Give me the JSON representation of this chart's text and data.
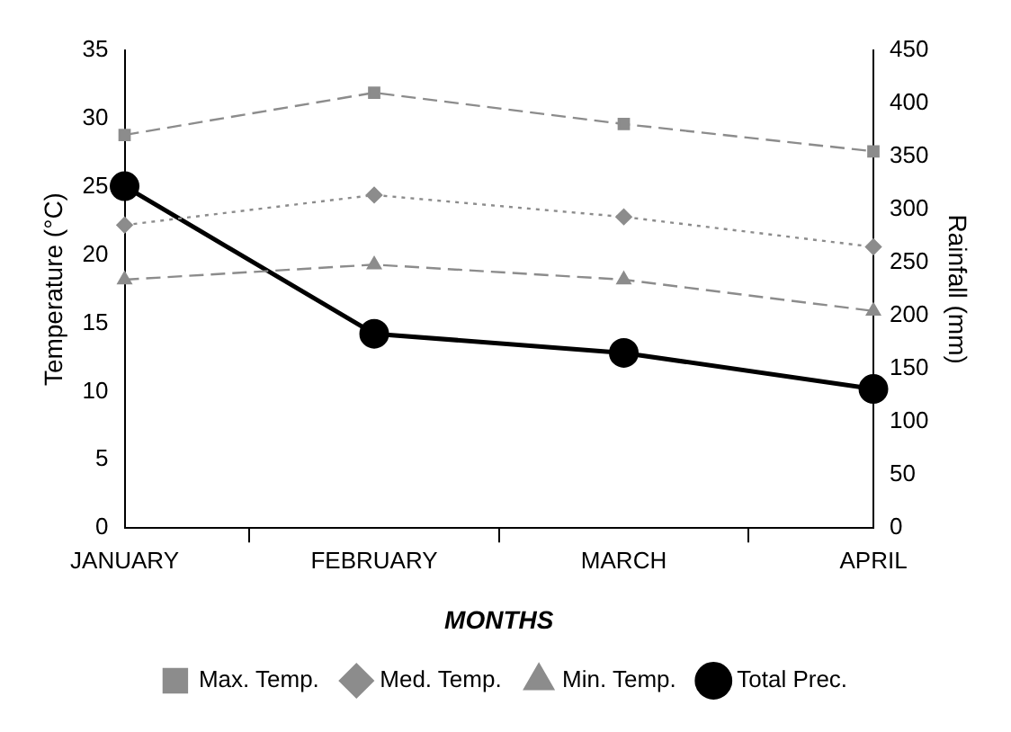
{
  "chart_data": {
    "type": "line",
    "xlabel": "MONTHS",
    "ylabel": "Temperature (°C)",
    "y2label": "Rainfall (mm)",
    "categories": [
      "JANUARY",
      "FEBRUARY",
      "MARCH",
      "APRIL"
    ],
    "series": [
      {
        "name": "Max. Temp.",
        "color": "#8c8c8c",
        "values": [
          28.8,
          31.9,
          29.6,
          27.6
        ],
        "marker": "square",
        "line_style": "dashed"
      },
      {
        "name": "Med. Temp.",
        "color": "#8c8c8c",
        "values": [
          22.2,
          24.4,
          22.8,
          20.6
        ],
        "marker": "diamond",
        "line_style": "dotted"
      },
      {
        "name": "Min. Temp.",
        "color": "#8c8c8c",
        "values": [
          18.2,
          19.3,
          18.2,
          15.9
        ],
        "marker": "triangle",
        "line_style": "dashed"
      },
      {
        "name": "Total Prec.",
        "color": "#000000",
        "values": [
          322,
          183,
          165,
          131
        ],
        "marker": "circle",
        "line_style": "solid",
        "axis": "y2"
      }
    ],
    "ylim": [
      0,
      35
    ],
    "yticks": [
      0,
      5,
      10,
      15,
      20,
      25,
      30,
      35
    ],
    "y2lim": [
      0,
      450
    ],
    "y2ticks": [
      0,
      50,
      100,
      150,
      200,
      250,
      300,
      350,
      400,
      450
    ],
    "grid": false,
    "legend": "bottom"
  }
}
